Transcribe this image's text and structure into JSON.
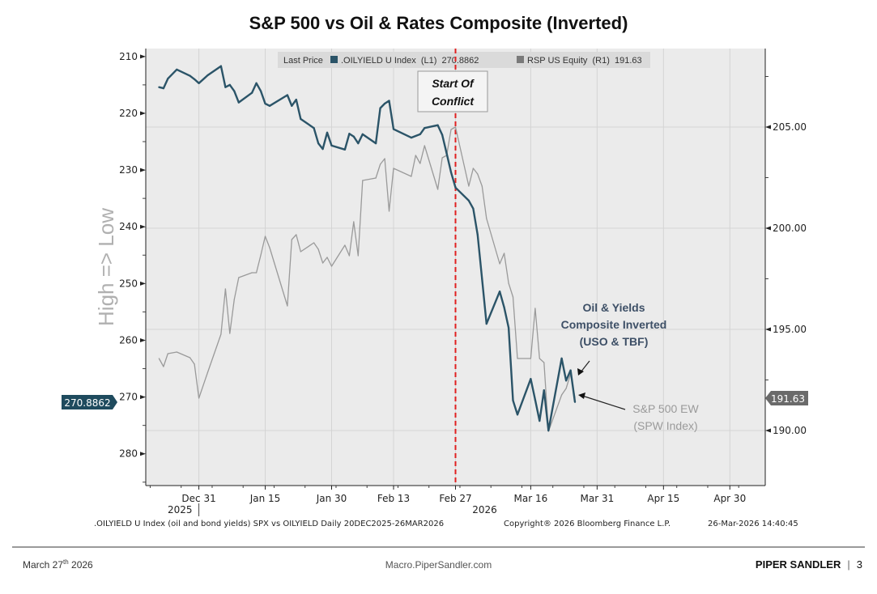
{
  "title": "S&P 500 vs Oil & Rates Composite (Inverted)",
  "legend": {
    "prefix": "Last Price",
    "entries": [
      {
        "label": ".OILYIELD U Index  (L1)  270.8862",
        "color": "#2b5468"
      },
      {
        "label": "RSP US Equity  (R1)  191.63",
        "color": "#7a7a7a"
      }
    ]
  },
  "annotation_box": {
    "line1": "Start Of",
    "line2": "Conflict"
  },
  "callouts": {
    "oil": [
      "Oil & Yields",
      "Composite Inverted",
      "(USO & TBF)"
    ],
    "spw": [
      "S&P 500 EW",
      "(SPW Index)"
    ]
  },
  "last_value_tags": {
    "left": "270.8862",
    "right": "191.63"
  },
  "source_line": ".OILYIELD U Index (oil and bond yields) SPX vs OILYIELD Daily 20DEC2025-26MAR2026",
  "copyright": "Copyright® 2026 Bloomberg Finance L.P.",
  "timestamp": "26-Mar-2026 14:40:45",
  "footer": {
    "date_main": "March 27",
    "date_sup": "th",
    "date_year": " 2026",
    "site": "Macro.PiperSandler.com",
    "brand": "PIPER SANDLER",
    "separator": "|",
    "page": "3"
  },
  "chart_data": {
    "type": "line",
    "title": "S&P 500 vs Oil & Rates Composite (Inverted)",
    "ylabel": "High => Low",
    "left_axis": {
      "ticks": [
        210,
        220,
        230,
        240,
        250,
        260,
        270,
        280
      ],
      "range": [
        208.6,
        285.6
      ],
      "inverted": true
    },
    "right_axis": {
      "ticks": [
        190.0,
        195.0,
        200.0,
        205.0
      ],
      "tick_labels": [
        "190.00",
        "195.00",
        "200.00",
        "205.00"
      ],
      "range": [
        187.28,
        208.88
      ]
    },
    "x_axis": {
      "range": [
        "2025-12-19",
        "2026-05-08"
      ],
      "ticks": [
        {
          "label": "Dec 31",
          "date": "2025-12-31"
        },
        {
          "label": "Jan 15",
          "date": "2026-01-15"
        },
        {
          "label": "Jan 30",
          "date": "2026-01-30"
        },
        {
          "label": "Feb 13",
          "date": "2026-02-13"
        },
        {
          "label": "Feb 27",
          "date": "2026-02-27"
        },
        {
          "label": "Mar 16",
          "date": "2026-03-16"
        },
        {
          "label": "Mar 31",
          "date": "2026-03-31"
        },
        {
          "label": "Apr 15",
          "date": "2026-04-15"
        },
        {
          "label": "Apr 30",
          "date": "2026-04-30"
        }
      ],
      "year_labels": [
        {
          "label": "2025",
          "date": "2025-12-31"
        },
        {
          "label": "2026",
          "date": "2026-02-27"
        }
      ]
    },
    "grid": true,
    "legend_position": "top",
    "event_line": {
      "date": "2026-02-27",
      "color": "#e02020"
    },
    "dates": [
      "2025-12-22",
      "2025-12-23",
      "2025-12-24",
      "2025-12-26",
      "2025-12-29",
      "2025-12-30",
      "2025-12-31",
      "2026-01-02",
      "2026-01-05",
      "2026-01-06",
      "2026-01-07",
      "2026-01-08",
      "2026-01-09",
      "2026-01-12",
      "2026-01-13",
      "2026-01-14",
      "2026-01-15",
      "2026-01-16",
      "2026-01-20",
      "2026-01-21",
      "2026-01-22",
      "2026-01-23",
      "2026-01-26",
      "2026-01-27",
      "2026-01-28",
      "2026-01-29",
      "2026-01-30",
      "2026-02-02",
      "2026-02-03",
      "2026-02-04",
      "2026-02-05",
      "2026-02-06",
      "2026-02-09",
      "2026-02-10",
      "2026-02-11",
      "2026-02-12",
      "2026-02-13",
      "2026-02-17",
      "2026-02-18",
      "2026-02-19",
      "2026-02-20",
      "2026-02-23",
      "2026-02-24",
      "2026-02-25",
      "2026-02-26",
      "2026-02-27",
      "2026-03-02",
      "2026-03-03",
      "2026-03-04",
      "2026-03-05",
      "2026-03-06",
      "2026-03-09",
      "2026-03-10",
      "2026-03-11",
      "2026-03-12",
      "2026-03-13",
      "2026-03-16",
      "2026-03-17",
      "2026-03-18",
      "2026-03-19",
      "2026-03-20",
      "2026-03-23",
      "2026-03-24",
      "2026-03-25",
      "2026-03-26"
    ],
    "series": [
      {
        "name": ".OILYIELD U Index",
        "axis": "left",
        "color": "#2b5468",
        "values": [
          215.4,
          215.6,
          213.9,
          212.3,
          213.4,
          214.0,
          214.7,
          213.3,
          211.7,
          215.4,
          215.0,
          216.1,
          218.1,
          216.4,
          214.7,
          216.1,
          218.3,
          218.7,
          216.8,
          218.7,
          217.6,
          221.0,
          222.6,
          225.3,
          226.3,
          223.4,
          225.7,
          226.4,
          223.6,
          224.1,
          225.3,
          223.7,
          225.3,
          219.1,
          218.3,
          217.8,
          222.8,
          224.3,
          224.0,
          223.7,
          222.6,
          222.1,
          223.8,
          227.1,
          230.4,
          233.1,
          235.4,
          236.8,
          241.4,
          249.2,
          257.1,
          251.4,
          254.2,
          257.8,
          270.6,
          273.1,
          266.8,
          270.5,
          274.2,
          268.8,
          275.9,
          263.2,
          267.1,
          265.3,
          270.8862
        ]
      },
      {
        "name": "RSP US Equity",
        "axis": "right",
        "color": "#9a9a9a",
        "values": [
          193.56,
          193.16,
          193.8,
          193.88,
          193.6,
          193.28,
          191.6,
          192.88,
          194.76,
          197.0,
          194.8,
          196.48,
          197.56,
          197.8,
          197.8,
          198.68,
          199.6,
          199.04,
          196.16,
          199.44,
          199.68,
          198.84,
          199.28,
          198.96,
          198.28,
          198.56,
          198.12,
          199.16,
          198.64,
          200.32,
          198.64,
          202.36,
          202.48,
          203.16,
          203.44,
          200.84,
          202.96,
          202.56,
          203.6,
          203.2,
          204.08,
          201.92,
          203.48,
          203.6,
          204.88,
          205.0,
          202.08,
          202.96,
          202.68,
          202.08,
          200.48,
          198.24,
          198.76,
          197.28,
          196.6,
          193.56,
          193.56,
          196.04,
          193.56,
          193.36,
          189.96,
          191.76,
          192.08,
          192.8,
          191.63
        ]
      }
    ]
  }
}
